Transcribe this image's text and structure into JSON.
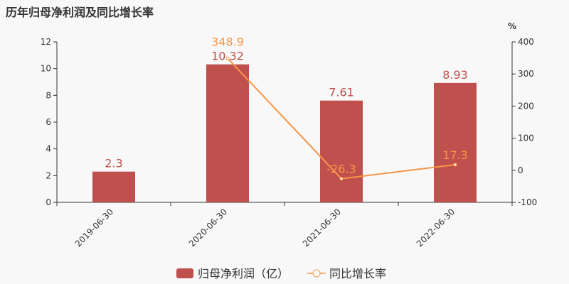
{
  "chart_data": {
    "type": "bar",
    "title": "历年归母净利润及同比增长率",
    "categories": [
      "2019-06-30",
      "2020-06-30",
      "2021-06-30",
      "2022-06-30"
    ],
    "series": [
      {
        "name": "归母净利润（亿）",
        "type": "bar",
        "axis": "left",
        "color": "#c0504d",
        "values": [
          2.3,
          10.32,
          7.61,
          8.93
        ],
        "labels": [
          "2.3",
          "10.32",
          "7.61",
          "8.93"
        ]
      },
      {
        "name": "同比增长率",
        "type": "line",
        "axis": "right",
        "color": "#f79646",
        "values": [
          null,
          348.9,
          -26.3,
          17.3
        ],
        "labels": [
          "",
          "348.9",
          "-26.3",
          "17.3"
        ]
      }
    ],
    "y_left": {
      "range": [
        0,
        12
      ],
      "ticks": [
        "0",
        "2",
        "4",
        "6",
        "8",
        "10",
        "12"
      ]
    },
    "y_right": {
      "label": "%",
      "range": [
        -100,
        400
      ],
      "ticks": [
        "-100",
        "0",
        "100",
        "200",
        "300",
        "400"
      ]
    },
    "grid": false,
    "legend_position": "bottom"
  }
}
